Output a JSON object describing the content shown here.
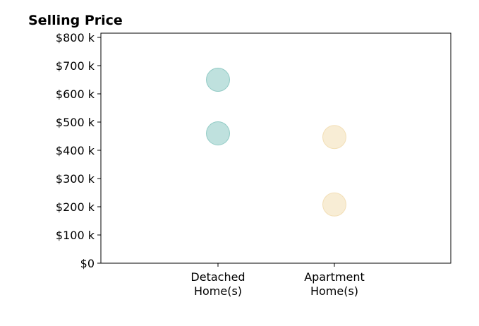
{
  "chart_data": {
    "type": "scatter",
    "title": "Selling Price",
    "xlabel": "",
    "ylabel": "",
    "categories": [
      "Detached\nHome(s)",
      "Apartment\nHome(s)"
    ],
    "ylim": [
      0,
      800000
    ],
    "yticks": [
      0,
      100000,
      200000,
      300000,
      400000,
      500000,
      600000,
      700000,
      800000
    ],
    "ytick_labels": [
      "$0",
      "$100 k",
      "$200 k",
      "$300 k",
      "$400 k",
      "$500 k",
      "$600 k",
      "$700 k",
      "$800 k"
    ],
    "grid": false,
    "series": [
      {
        "category": "Detached\nHome(s)",
        "values": [
          650000,
          460000
        ],
        "color": "#7fc4bd",
        "edge": "#5fb3aa"
      },
      {
        "category": "Apartment\nHome(s)",
        "values": [
          447000,
          208000
        ],
        "color": "#f2dcab",
        "edge": "#ecd196"
      }
    ]
  }
}
